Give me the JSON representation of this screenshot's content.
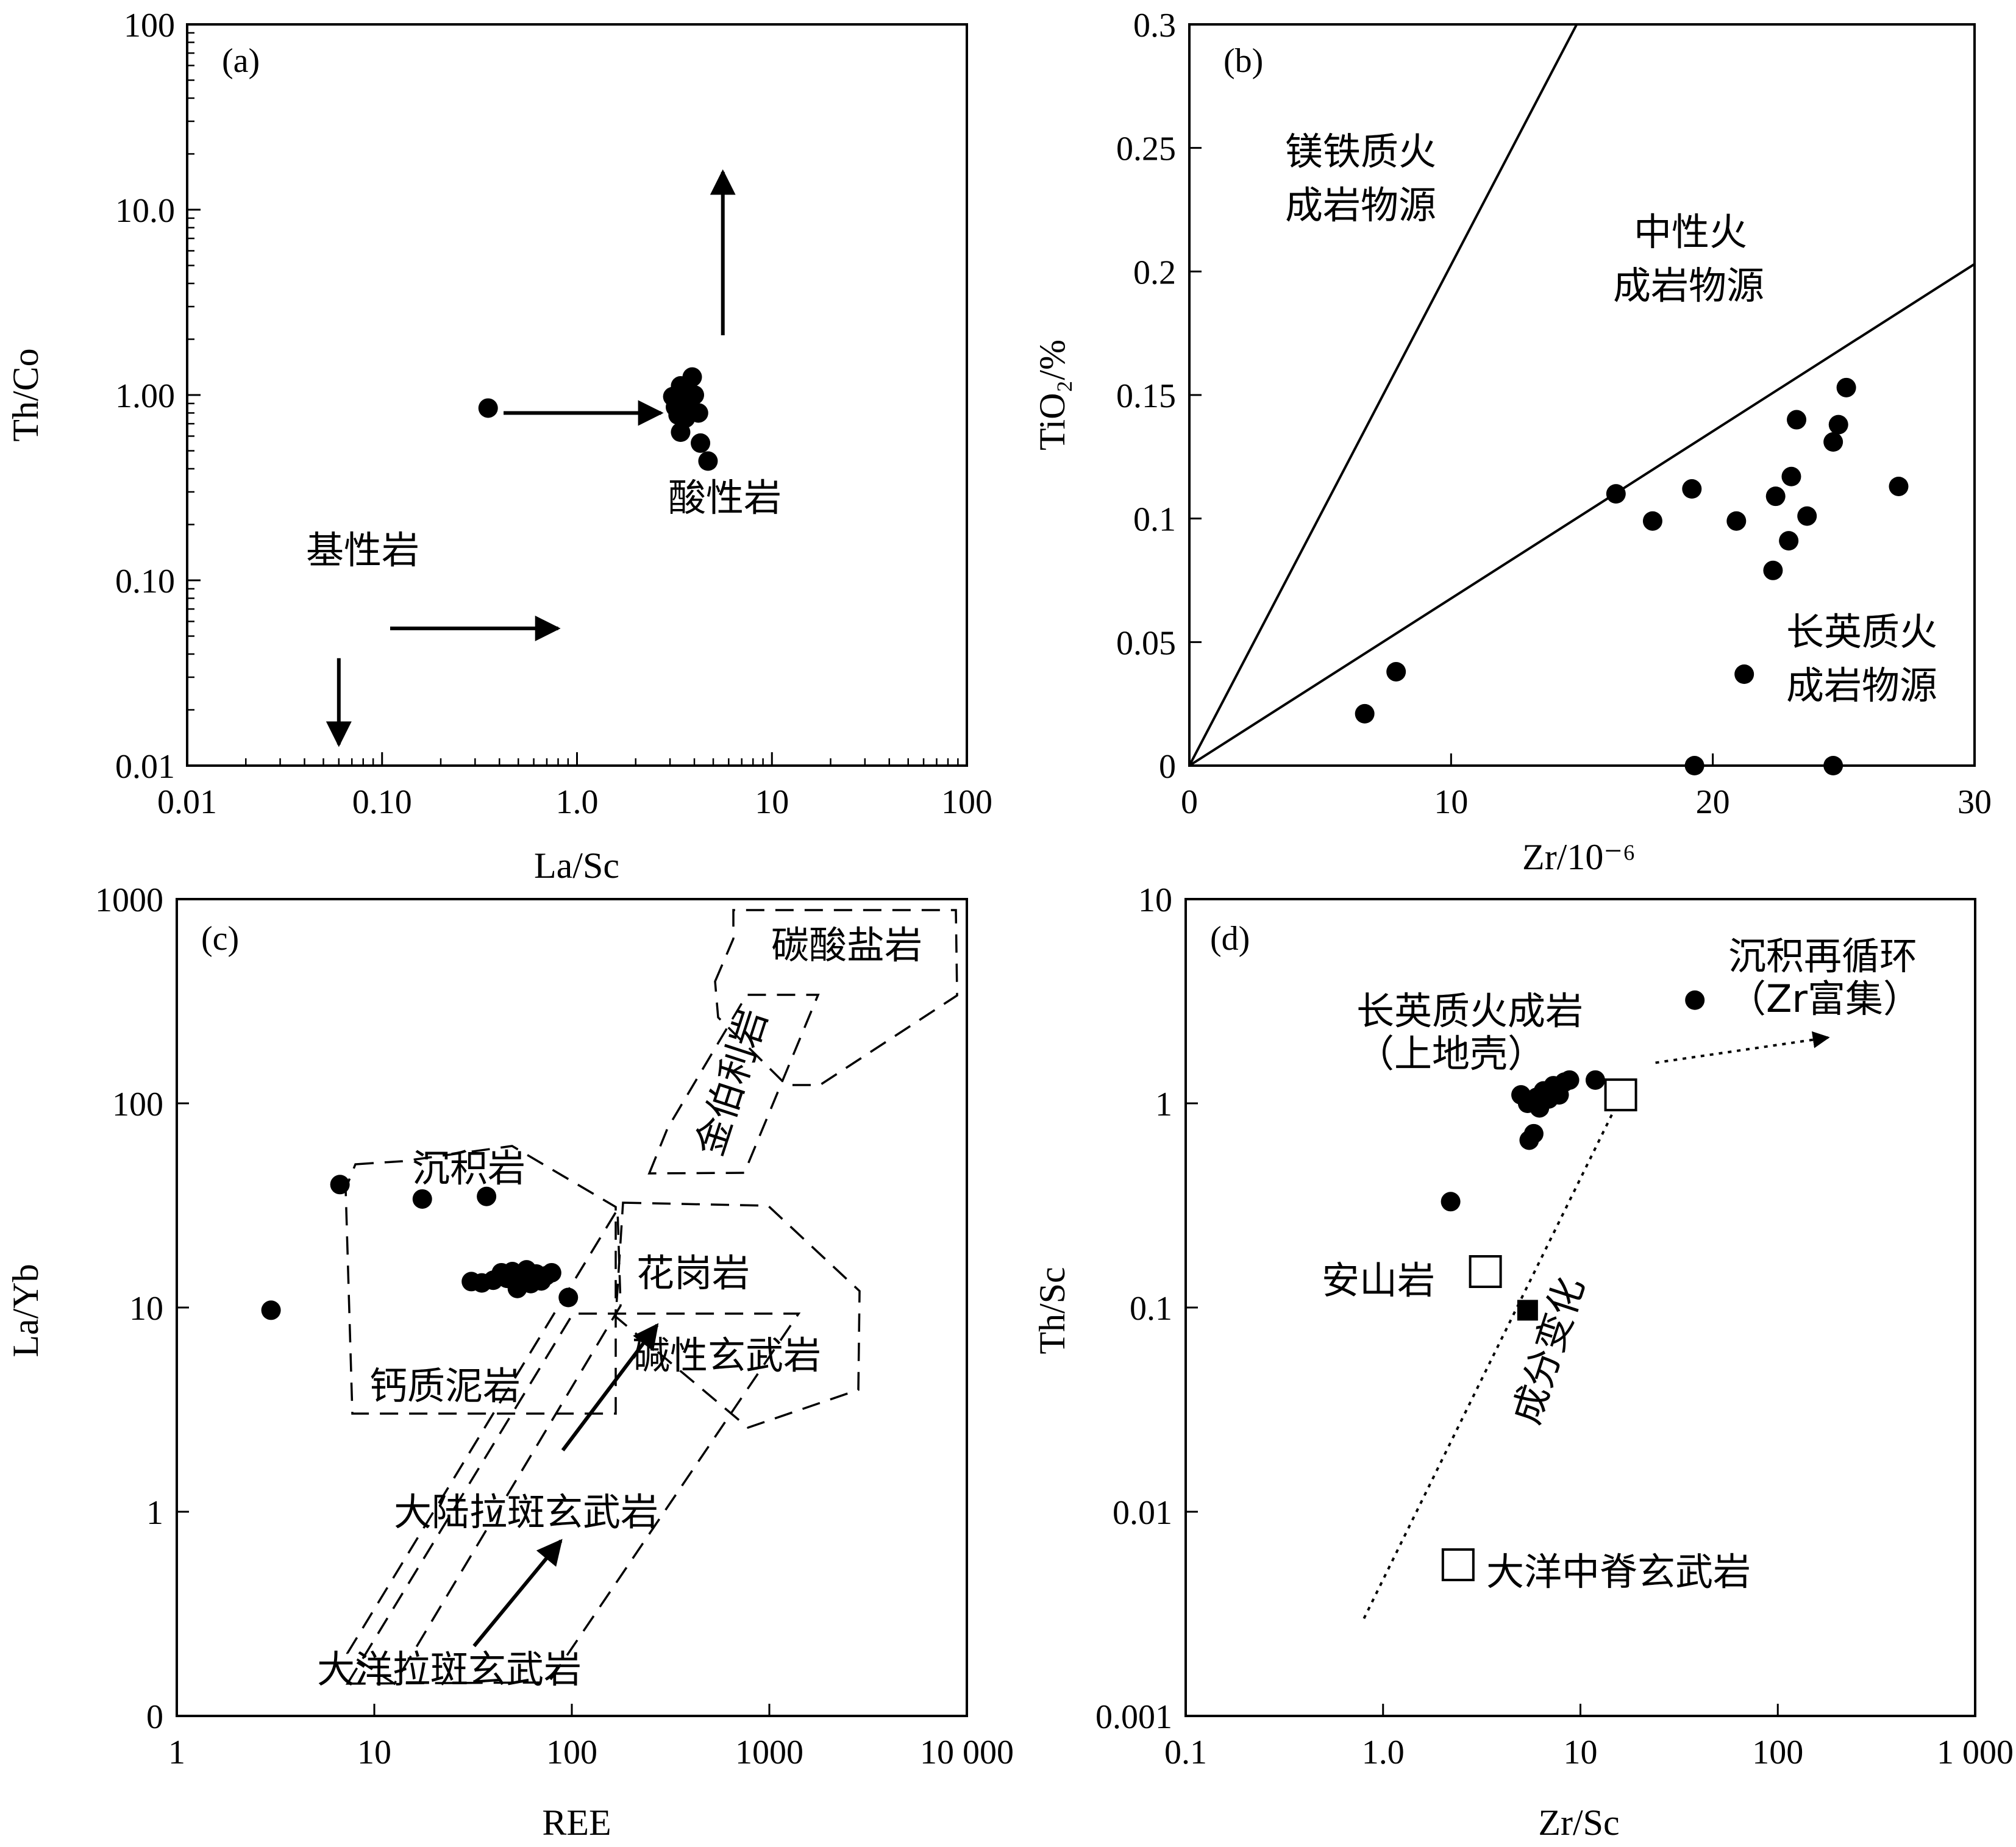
{
  "chart_data": [
    {
      "panel": "(a)",
      "type": "scatter",
      "xlabel": "La/Sc",
      "ylabel": "Th/Co",
      "xscale": "log",
      "yscale": "log",
      "xlim": [
        0.01,
        100
      ],
      "ylim": [
        0.01,
        100
      ],
      "x_ticks": [
        "0.01",
        "0.10",
        "1.0",
        "10",
        "100"
      ],
      "y_ticks": [
        "0.01",
        "0.10",
        "1.00",
        "10.0",
        "100"
      ],
      "annotations": [
        "基性岩",
        "酸性岩"
      ],
      "points": [
        {
          "x": 0.35,
          "y": 0.85
        },
        {
          "x": 3.1,
          "y": 0.98
        },
        {
          "x": 3.3,
          "y": 0.9
        },
        {
          "x": 3.4,
          "y": 1.12
        },
        {
          "x": 3.5,
          "y": 0.82
        },
        {
          "x": 3.6,
          "y": 0.75
        },
        {
          "x": 3.7,
          "y": 1.05
        },
        {
          "x": 3.8,
          "y": 0.92
        },
        {
          "x": 3.9,
          "y": 1.25
        },
        {
          "x": 4.0,
          "y": 1.0
        },
        {
          "x": 3.3,
          "y": 0.78
        },
        {
          "x": 3.4,
          "y": 0.63
        },
        {
          "x": 3.6,
          "y": 0.88
        },
        {
          "x": 3.2,
          "y": 0.86
        },
        {
          "x": 4.2,
          "y": 0.8
        },
        {
          "x": 4.3,
          "y": 0.55
        },
        {
          "x": 4.7,
          "y": 0.44
        }
      ],
      "arrows": [
        {
          "from": [
            0.42,
            0.8
          ],
          "to": [
            2.7,
            0.8
          ]
        },
        {
          "from": [
            0.11,
            0.055
          ],
          "to": [
            0.8,
            0.055
          ]
        },
        {
          "from": [
            0.06,
            0.038
          ],
          "to": [
            0.06,
            0.013
          ]
        },
        {
          "from": [
            5.6,
            2.1
          ],
          "to": [
            5.6,
            16
          ]
        }
      ]
    },
    {
      "panel": "(b)",
      "type": "scatter",
      "xlabel": "Zr/10⁻⁶",
      "ylabel": "TiO₂/%",
      "xlim": [
        0,
        30
      ],
      "ylim": [
        0,
        0.3
      ],
      "x_ticks": [
        "0",
        "10",
        "20",
        "30"
      ],
      "y_ticks": [
        "0",
        "0.05",
        "0.1",
        "0.15",
        "0.2",
        "0.25",
        "0.3"
      ],
      "region_labels": [
        [
          "镁铁质火",
          "成岩物源"
        ],
        [
          "中性火",
          "成岩物源"
        ],
        [
          "长英质火",
          "成岩物源"
        ]
      ],
      "boundary_lines": [
        {
          "from": [
            0,
            0
          ],
          "to": [
            14.8,
            0.3
          ]
        },
        {
          "from": [
            0,
            0
          ],
          "to": [
            30,
            0.203
          ]
        }
      ],
      "points": [
        {
          "x": 6.7,
          "y": 0.021
        },
        {
          "x": 7.9,
          "y": 0.038
        },
        {
          "x": 16.3,
          "y": 0.11
        },
        {
          "x": 17.7,
          "y": 0.099
        },
        {
          "x": 19.2,
          "y": 0.112
        },
        {
          "x": 19.3,
          "y": 0.0
        },
        {
          "x": 20.9,
          "y": 0.099
        },
        {
          "x": 21.2,
          "y": 0.037
        },
        {
          "x": 22.3,
          "y": 0.079
        },
        {
          "x": 22.4,
          "y": 0.109
        },
        {
          "x": 22.9,
          "y": 0.091
        },
        {
          "x": 23.0,
          "y": 0.117
        },
        {
          "x": 23.2,
          "y": 0.14
        },
        {
          "x": 23.6,
          "y": 0.101
        },
        {
          "x": 24.6,
          "y": 0.131
        },
        {
          "x": 24.6,
          "y": 0.0
        },
        {
          "x": 24.8,
          "y": 0.138
        },
        {
          "x": 25.1,
          "y": 0.153
        },
        {
          "x": 27.1,
          "y": 0.113
        }
      ]
    },
    {
      "panel": "(c)",
      "type": "scatter",
      "xlabel": "REE",
      "ylabel": "La/Yb",
      "xscale": "log",
      "yscale": "log",
      "xlim": [
        1,
        10000
      ],
      "ylim_ticks": [
        "0",
        "1",
        "10",
        "100",
        "1000"
      ],
      "x_ticks": [
        "1",
        "10",
        "100",
        "1000",
        "10 000"
      ],
      "y_ticks": [
        "0",
        "1",
        "10",
        "100",
        "1000"
      ],
      "region_labels": [
        "碳酸盐岩",
        "金伯利岩",
        "沉积岩",
        "花岗岩",
        "碱性玄武岩",
        "钙质泥岩",
        "大陆拉斑玄武岩",
        "大洋拉斑玄武岩"
      ],
      "points": [
        {
          "x": 3.0,
          "y": 9.7
        },
        {
          "x": 6.7,
          "y": 40
        },
        {
          "x": 17.5,
          "y": 34
        },
        {
          "x": 37,
          "y": 35
        },
        {
          "x": 31,
          "y": 13.4
        },
        {
          "x": 35,
          "y": 13.2
        },
        {
          "x": 40,
          "y": 13.6
        },
        {
          "x": 44,
          "y": 14.8
        },
        {
          "x": 47,
          "y": 13.9
        },
        {
          "x": 50,
          "y": 15.0
        },
        {
          "x": 53,
          "y": 12.4
        },
        {
          "x": 56,
          "y": 14.2
        },
        {
          "x": 59,
          "y": 15.3
        },
        {
          "x": 62,
          "y": 13.1
        },
        {
          "x": 66,
          "y": 14.6
        },
        {
          "x": 70,
          "y": 13.5
        },
        {
          "x": 74,
          "y": 14.3
        },
        {
          "x": 79,
          "y": 14.8
        },
        {
          "x": 96,
          "y": 11.2
        }
      ],
      "arrows": [
        {
          "from": [
            90,
            2.0
          ],
          "to": [
            270,
            8.2
          ]
        },
        {
          "from": [
            32,
            0.22
          ],
          "to": [
            88,
            0.72
          ]
        }
      ]
    },
    {
      "panel": "(d)",
      "type": "scatter",
      "xlabel": "Zr/Sc",
      "ylabel": "Th/Sc",
      "xscale": "log",
      "yscale": "log",
      "xlim": [
        0.1,
        1000
      ],
      "ylim": [
        0.001,
        10
      ],
      "x_ticks": [
        "0.1",
        "1.0",
        "10",
        "100",
        "1 000"
      ],
      "y_ticks": [
        "0.001",
        "0.01",
        "0.1",
        "1",
        "10"
      ],
      "annotations": [
        "长英质火成岩",
        "（上地壳）",
        "沉积再循环",
        "（Zr富集）",
        "安山岩",
        "成分变化",
        "大洋中脊玄武岩"
      ],
      "points": [
        {
          "x": 2.2,
          "y": 0.33
        },
        {
          "x": 5.0,
          "y": 1.1
        },
        {
          "x": 5.4,
          "y": 1.0
        },
        {
          "x": 5.5,
          "y": 0.66
        },
        {
          "x": 5.8,
          "y": 0.71
        },
        {
          "x": 6.0,
          "y": 1.07
        },
        {
          "x": 6.2,
          "y": 0.95
        },
        {
          "x": 6.5,
          "y": 1.15
        },
        {
          "x": 6.9,
          "y": 1.05
        },
        {
          "x": 7.3,
          "y": 1.22
        },
        {
          "x": 7.8,
          "y": 1.1
        },
        {
          "x": 8.3,
          "y": 1.27
        },
        {
          "x": 8.8,
          "y": 1.3
        },
        {
          "x": 11.9,
          "y": 1.3
        },
        {
          "x": 38,
          "y": 3.2
        }
      ],
      "reference_points": [
        {
          "x": 16,
          "y": 1.1,
          "marker": "open-square"
        },
        {
          "x": 3.3,
          "y": 0.15,
          "marker": "open-square"
        },
        {
          "x": 5.4,
          "y": 0.097,
          "marker": "filled-square"
        },
        {
          "x": 2.4,
          "y": 0.0055,
          "marker": "open-square"
        }
      ],
      "dotted_lines": [
        {
          "from": [
            0.8,
            0.003
          ],
          "to": [
            15,
            0.95
          ]
        },
        {
          "from": [
            24,
            1.58
          ],
          "to": [
            180,
            2.1
          ]
        }
      ]
    }
  ]
}
